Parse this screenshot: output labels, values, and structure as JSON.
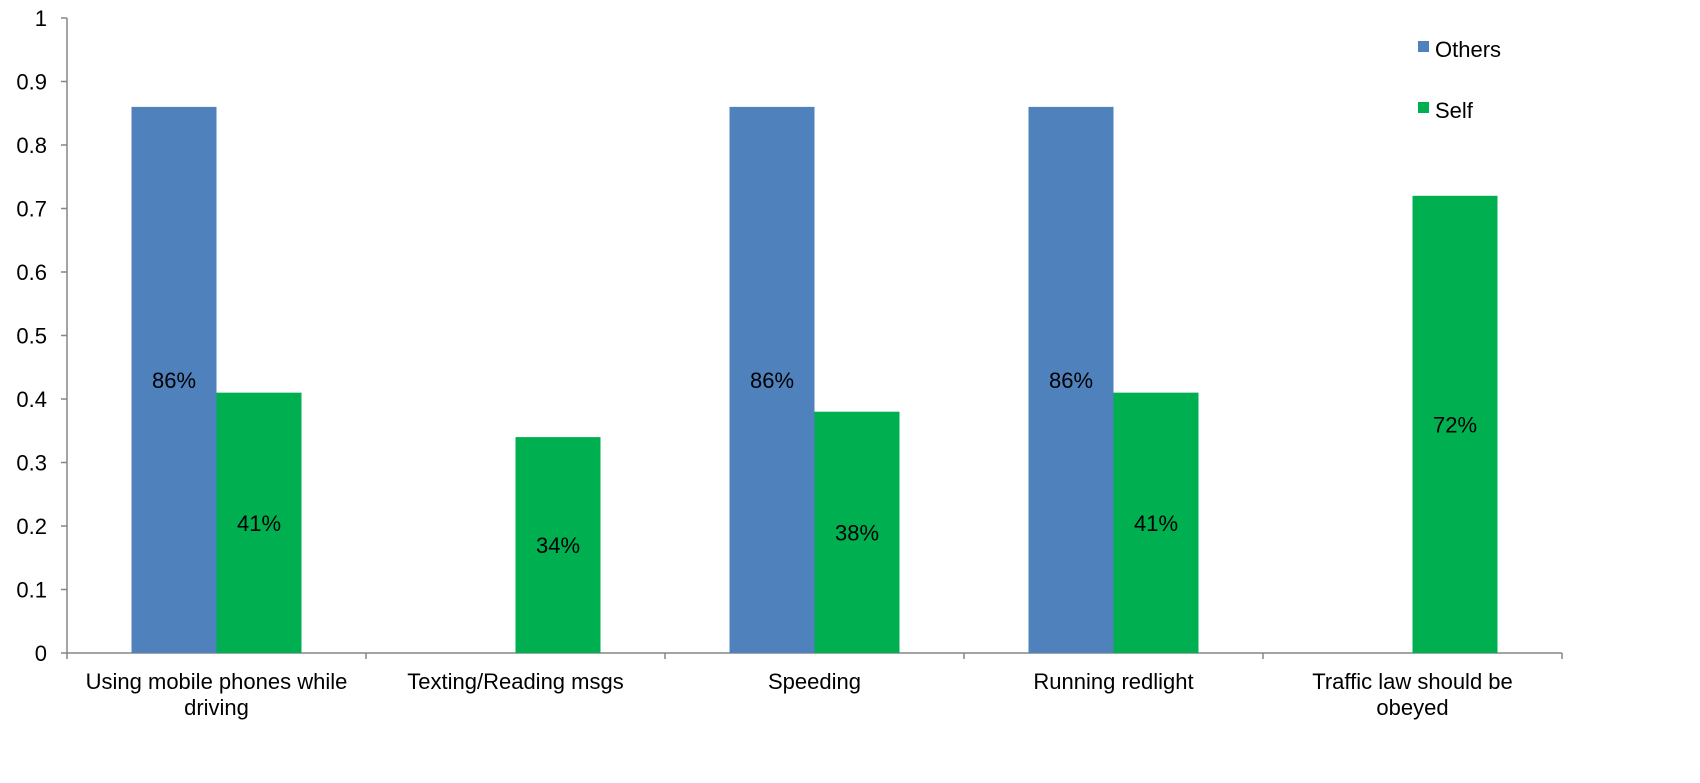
{
  "chart_data": {
    "type": "bar",
    "title": "",
    "xlabel": "",
    "ylabel": "",
    "ylim": [
      0,
      1
    ],
    "yticks": [
      "0",
      "0.1",
      "0.2",
      "0.3",
      "0.4",
      "0.5",
      "0.6",
      "0.7",
      "0.8",
      "0.9",
      "1"
    ],
    "grid": false,
    "legend_position": "top-right",
    "categories": [
      [
        "Using mobile phones while",
        "driving"
      ],
      [
        "Texting/Reading msgs"
      ],
      [
        "Speeding"
      ],
      [
        "Running redlight"
      ],
      [
        "Traffic law should  be",
        "obeyed"
      ]
    ],
    "series": [
      {
        "name": "Others",
        "color": "#4F81BD",
        "values": [
          0.86,
          null,
          0.86,
          0.86,
          null
        ],
        "labels": [
          "86%",
          "",
          "86%",
          "86%",
          ""
        ]
      },
      {
        "name": "Self",
        "color": "#00B050",
        "values": [
          0.41,
          0.34,
          0.38,
          0.41,
          0.72
        ],
        "labels": [
          "41%",
          "34%",
          "38%",
          "41%",
          "72%"
        ]
      }
    ]
  }
}
